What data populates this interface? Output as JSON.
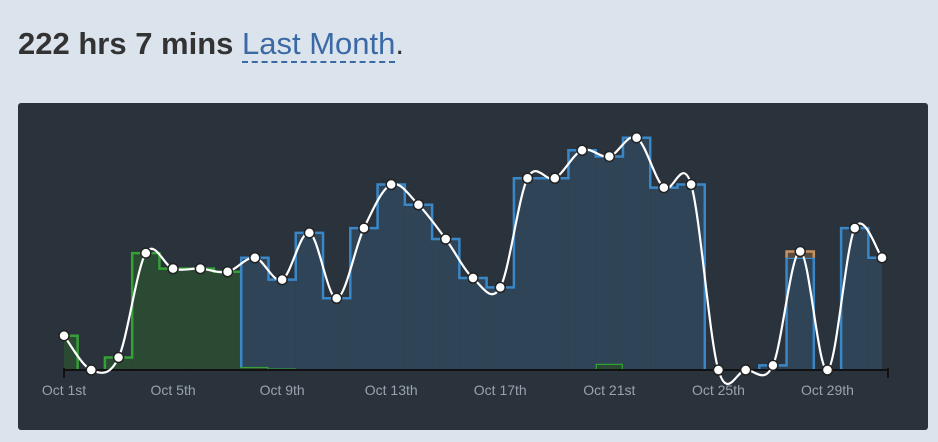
{
  "header": {
    "total": "222 hrs 7 mins",
    "period": "Last Month",
    "end": "."
  },
  "chart_data": {
    "type": "step-area",
    "categories": [
      "Oct 1st",
      null,
      null,
      null,
      "Oct 5th",
      null,
      null,
      null,
      "Oct 9th",
      null,
      null,
      null,
      "Oct 13th",
      null,
      null,
      null,
      "Oct 17th",
      null,
      null,
      null,
      "Oct 21st",
      null,
      null,
      null,
      "Oct 25th",
      null,
      null,
      null,
      "Oct 29th",
      null,
      null
    ],
    "series": [
      {
        "name": "green",
        "color": "#35a035",
        "fill": "#2b4a34",
        "values": [
          2.2,
          0,
          0.8,
          7.5,
          6.5,
          6.5,
          6.3,
          0.2,
          0.1,
          0,
          0,
          0,
          0,
          0,
          0,
          0,
          0,
          0,
          0,
          0,
          0.4,
          0,
          0,
          0,
          0,
          0,
          0,
          0,
          0,
          0,
          0
        ]
      },
      {
        "name": "blue",
        "color": "#3a87c8",
        "fill": "#2f4456",
        "values": [
          0,
          0,
          0,
          0,
          0,
          0,
          0,
          7.0,
          5.7,
          8.8,
          4.6,
          9.1,
          11.9,
          10.6,
          8.4,
          5.9,
          5.3,
          12.3,
          12.3,
          14.1,
          13.3,
          14.9,
          11.7,
          11.9,
          0,
          0,
          0.3,
          7.2,
          0,
          9.1,
          7.2
        ]
      },
      {
        "name": "orange",
        "color": "#c8915f",
        "fill": "#5a4a3c",
        "values": [
          0,
          0,
          0,
          0,
          0,
          0,
          0,
          0,
          0,
          0,
          0,
          0,
          0,
          0,
          0,
          0,
          0,
          0,
          0,
          0,
          0,
          0,
          0,
          0,
          0,
          0,
          0,
          0.4,
          0,
          0,
          0
        ]
      }
    ],
    "ylim": [
      0,
      17
    ],
    "line_color": "#ffffff"
  }
}
